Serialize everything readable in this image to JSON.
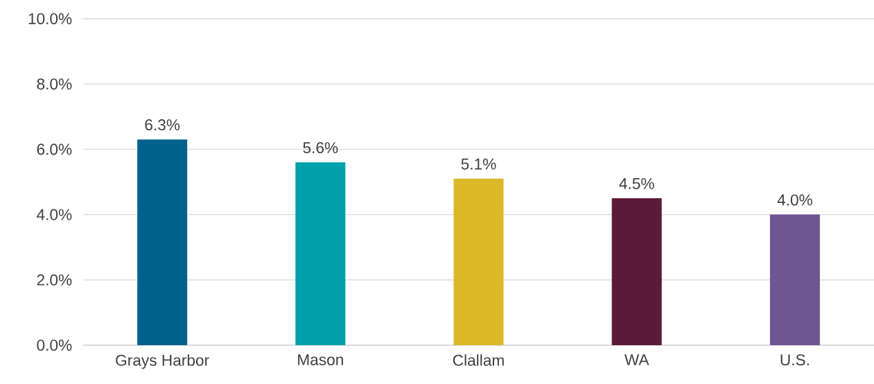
{
  "chart_data": {
    "type": "bar",
    "categories": [
      "Grays Harbor",
      "Mason",
      "Clallam",
      "WA",
      "U.S."
    ],
    "values": [
      6.3,
      5.6,
      5.1,
      4.5,
      4.0
    ],
    "colors": [
      "#00628a",
      "#00a0a8",
      "#dbb928",
      "#5a1a3a",
      "#6e5593"
    ],
    "value_labels": [
      "6.3%",
      "5.6%",
      "5.1%",
      "4.5%",
      "4.0%"
    ],
    "ylim": [
      0,
      10
    ],
    "yticks": [
      {
        "value": 0,
        "label": "0.0%"
      },
      {
        "value": 2,
        "label": "2.0%"
      },
      {
        "value": 4,
        "label": "4.0%"
      },
      {
        "value": 6,
        "label": "6.0%"
      },
      {
        "value": 8,
        "label": "8.0%"
      },
      {
        "value": 10,
        "label": "10.0%"
      }
    ],
    "grid": "y"
  }
}
